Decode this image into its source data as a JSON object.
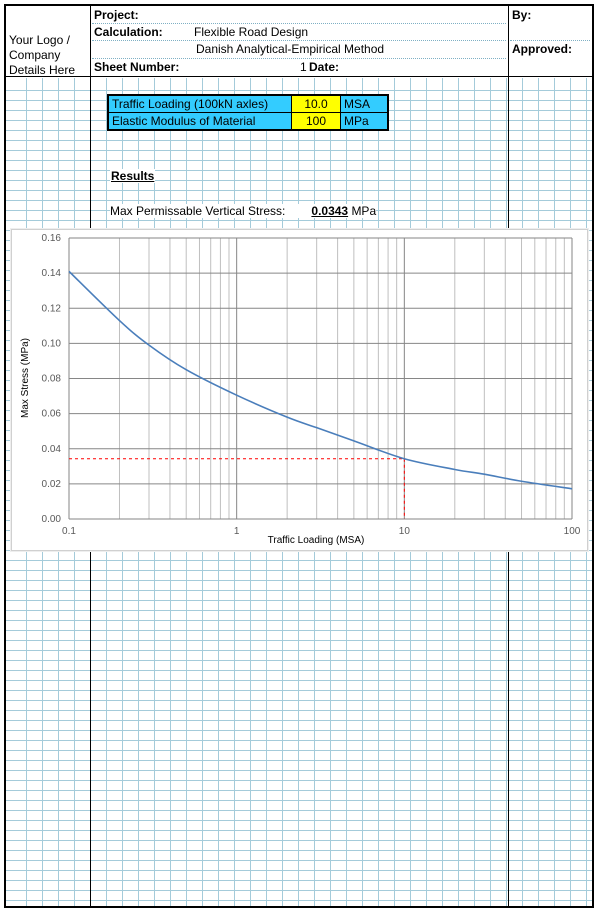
{
  "header": {
    "project_label": "Project:",
    "calculation_label": "Calculation:",
    "calculation_value_1": "Flexible Road Design",
    "calculation_value_2": "Danish Analytical-Empirical Method",
    "sheet_number_label": "Sheet Number:",
    "sheet_number_value": "1",
    "date_label": "Date:",
    "by_label": "By:",
    "approved_label": "Approved:",
    "logo_text": [
      "Your Logo /",
      "Company",
      "Details Here"
    ]
  },
  "inputs": [
    {
      "label": "Traffic Loading (100kN axles)",
      "value": "10.0",
      "unit": "MSA"
    },
    {
      "label": "Elastic Modulus of Material",
      "value": "100",
      "unit": "MPa"
    }
  ],
  "results": {
    "heading": "Results",
    "max_stress_label": "Max Permissable Vertical Stress:",
    "max_stress_value": "0.0343",
    "max_stress_unit": "MPa"
  },
  "colors": {
    "input_label_bg": "#33ccff",
    "input_value_bg": "#ffff00",
    "series": "#4a7ebb",
    "marker": "#ff0000"
  },
  "chart_data": {
    "type": "line",
    "title": "",
    "xlabel": "Traffic Loading (MSA)",
    "ylabel": "Max Stress (MPa)",
    "x_scale": "log",
    "xlim": [
      0.1,
      100
    ],
    "ylim": [
      0,
      0.16
    ],
    "x_ticks": [
      "0.1",
      "1",
      "10",
      "100"
    ],
    "y_ticks": [
      "0.00",
      "0.02",
      "0.04",
      "0.06",
      "0.08",
      "0.10",
      "0.12",
      "0.14",
      "0.16"
    ],
    "grid": true,
    "series": [
      {
        "x": [
          0.1,
          0.2,
          0.3,
          0.5,
          1,
          2,
          3,
          5,
          10,
          20,
          30,
          50,
          100
        ],
        "y": [
          0.141,
          0.113,
          0.099,
          0.085,
          0.0705,
          0.058,
          0.052,
          0.0445,
          0.0343,
          0.0282,
          0.0255,
          0.0215,
          0.0172
        ]
      }
    ],
    "marker": {
      "x": 10,
      "y": 0.0343
    }
  }
}
